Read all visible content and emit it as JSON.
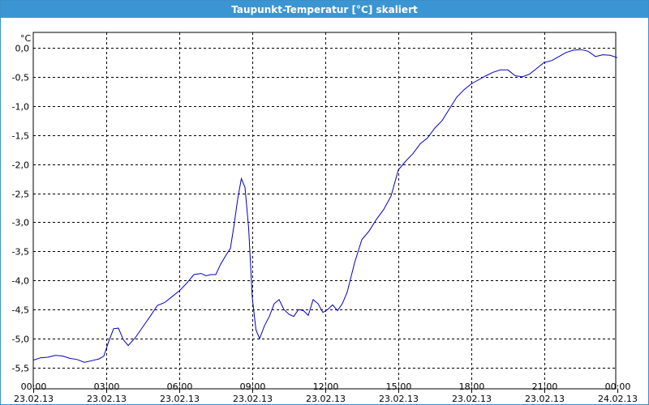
{
  "window": {
    "title": "Taupunkt-Temperatur [°C] skaliert"
  },
  "colors": {
    "titlebar": "#3c95d3",
    "line": "#0000c8",
    "grid": "#000000"
  },
  "chart_data": {
    "type": "line",
    "title": "Taupunkt-Temperatur [°C] skaliert",
    "ylabel": "°C",
    "xlabel": "",
    "ylim": [
      -5.6,
      0.1
    ],
    "xlim_hours": [
      0,
      24
    ],
    "grid": true,
    "yticks": [
      "0,0",
      "-0,5",
      "-1,0",
      "-1,5",
      "-2,0",
      "-2,5",
      "-3,0",
      "-3,5",
      "-4,0",
      "-4,5",
      "-5,0",
      "-5,5"
    ],
    "xticks": [
      {
        "time": "00:00",
        "date": "23.02.13"
      },
      {
        "time": "03:00",
        "date": "23.02.13"
      },
      {
        "time": "06:00",
        "date": "23.02.13"
      },
      {
        "time": "09:00",
        "date": "23.02.13"
      },
      {
        "time": "12:00",
        "date": "23.02.13"
      },
      {
        "time": "15:00",
        "date": "23.02.13"
      },
      {
        "time": "18:00",
        "date": "23.02.13"
      },
      {
        "time": "21:00",
        "date": "23.02.13"
      },
      {
        "time": "00:00",
        "date": "24.02.13"
      }
    ],
    "series": [
      {
        "x_hours": [
          0,
          0.3,
          0.6,
          0.9,
          1.2,
          1.5,
          1.8,
          2.1,
          2.4,
          2.7,
          2.9,
          3.1,
          3.3,
          3.5,
          3.7,
          3.9,
          4.2,
          4.5,
          4.8,
          5.1,
          5.4,
          5.7,
          6.0,
          6.3,
          6.6,
          6.9,
          7.1,
          7.3,
          7.5,
          7.7,
          7.9,
          8.1,
          8.25,
          8.4,
          8.55,
          8.7,
          8.85,
          9.0,
          9.15,
          9.3,
          9.5,
          9.7,
          9.9,
          10.1,
          10.3,
          10.5,
          10.7,
          10.9,
          11.1,
          11.3,
          11.5,
          11.7,
          11.9,
          12.1,
          12.3,
          12.5,
          12.7,
          12.9,
          13.2,
          13.5,
          13.8,
          14.1,
          14.4,
          14.7,
          15.0,
          15.3,
          15.6,
          15.9,
          16.2,
          16.5,
          16.8,
          17.1,
          17.4,
          17.7,
          18.0,
          18.3,
          18.6,
          18.9,
          19.2,
          19.5,
          19.8,
          20.1,
          20.4,
          20.7,
          21.0,
          21.3,
          21.6,
          21.9,
          22.2,
          22.5,
          22.8,
          23.1,
          23.4,
          23.7,
          24.0
        ],
        "y": [
          -5.37,
          -5.33,
          -5.32,
          -5.29,
          -5.3,
          -5.34,
          -5.36,
          -5.41,
          -5.38,
          -5.35,
          -5.3,
          -5.05,
          -4.83,
          -4.82,
          -5.02,
          -5.12,
          -4.98,
          -4.8,
          -4.62,
          -4.43,
          -4.38,
          -4.28,
          -4.18,
          -4.05,
          -3.9,
          -3.88,
          -3.92,
          -3.9,
          -3.9,
          -3.72,
          -3.58,
          -3.45,
          -3.05,
          -2.6,
          -2.25,
          -2.4,
          -3.1,
          -4.3,
          -4.85,
          -5.0,
          -4.78,
          -4.62,
          -4.4,
          -4.33,
          -4.5,
          -4.58,
          -4.62,
          -4.5,
          -4.52,
          -4.6,
          -4.33,
          -4.4,
          -4.55,
          -4.5,
          -4.42,
          -4.52,
          -4.4,
          -4.2,
          -3.7,
          -3.3,
          -3.15,
          -2.95,
          -2.78,
          -2.55,
          -2.1,
          -1.95,
          -1.82,
          -1.65,
          -1.55,
          -1.38,
          -1.25,
          -1.05,
          -0.85,
          -0.72,
          -0.62,
          -0.55,
          -0.48,
          -0.42,
          -0.38,
          -0.38,
          -0.48,
          -0.5,
          -0.45,
          -0.35,
          -0.25,
          -0.22,
          -0.15,
          -0.08,
          -0.04,
          -0.03,
          -0.06,
          -0.15,
          -0.12,
          -0.13,
          -0.17
        ]
      }
    ]
  }
}
